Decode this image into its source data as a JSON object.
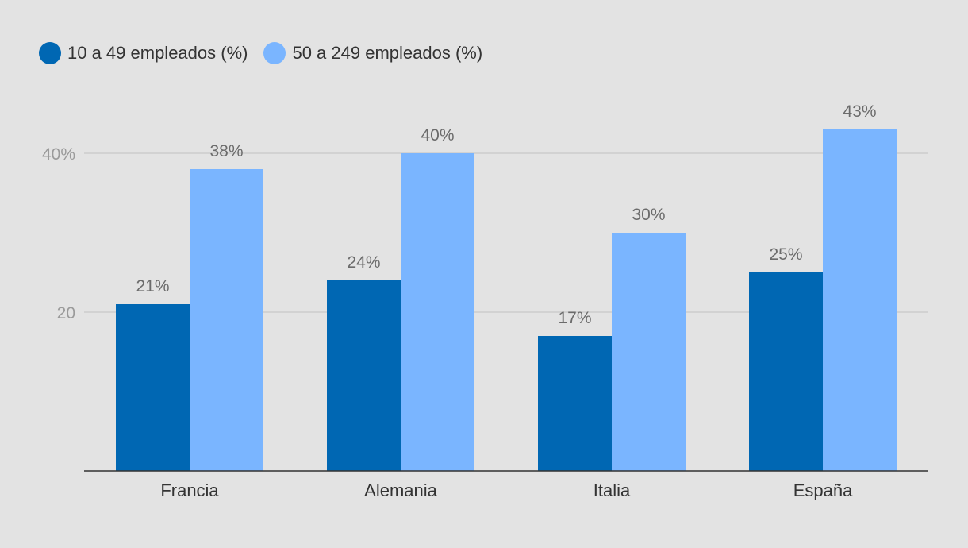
{
  "chart_data": {
    "type": "bar",
    "categories": [
      "Francia",
      "Alemania",
      "Italia",
      "España"
    ],
    "series": [
      {
        "name": "10 a 49 empleados (%)",
        "values": [
          21,
          24,
          17,
          25
        ],
        "color": "#0067b3",
        "labels": [
          "21%",
          "24%",
          "17%",
          "25%"
        ]
      },
      {
        "name": "50 a 249 empleados (%)",
        "values": [
          38,
          40,
          30,
          43
        ],
        "color": "#7ab5ff",
        "labels": [
          "38%",
          "40%",
          "30%",
          "43%"
        ]
      }
    ],
    "yticks": [
      {
        "value": 20,
        "label": "20"
      },
      {
        "value": 40,
        "label": "40%"
      }
    ],
    "ylim": [
      0,
      45
    ],
    "grid": true,
    "legend_position": "top-left",
    "title": "",
    "xlabel": "",
    "ylabel": ""
  },
  "colors": {
    "background": "#e3e3e3",
    "gridline": "#cccccc",
    "axis": "#333333"
  }
}
